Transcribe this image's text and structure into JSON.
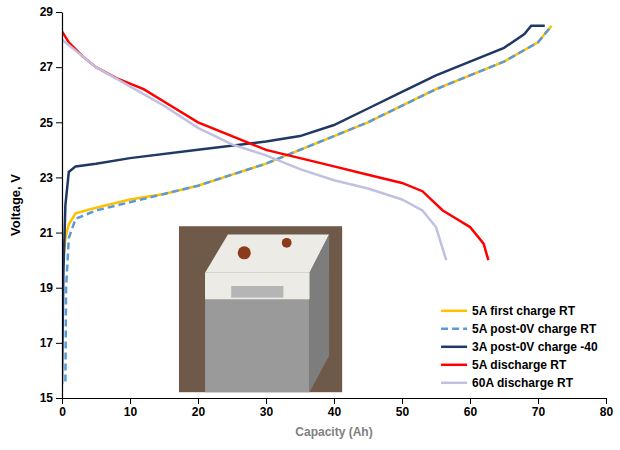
{
  "chart_data": {
    "type": "line",
    "x_label": "Capacity (Ah)",
    "y_label": "Voltage, V",
    "xlim": [
      0,
      80
    ],
    "xticks": [
      0,
      10,
      20,
      30,
      40,
      50,
      60,
      70,
      80
    ],
    "ylim": [
      15,
      29
    ],
    "yticks": [
      15,
      17,
      19,
      21,
      23,
      25,
      27,
      29
    ],
    "grid": false,
    "legend": "lower right",
    "series": [
      {
        "name": "5A first charge RT",
        "color": "#FFC000",
        "line_style": "solid",
        "x": [
          0,
          0.5,
          1,
          2,
          5,
          10,
          15,
          20,
          25,
          30,
          35,
          40,
          45,
          50,
          55,
          60,
          65,
          70,
          72
        ],
        "values": [
          19.5,
          20.8,
          21.3,
          21.7,
          21.9,
          22.2,
          22.4,
          22.7,
          23.1,
          23.5,
          24.0,
          24.5,
          25.0,
          25.6,
          26.2,
          26.7,
          27.2,
          27.9,
          28.5
        ]
      },
      {
        "name": "5A post-0V charge RT",
        "color": "#5B9BD5",
        "line_style": "dashed",
        "x": [
          0.5,
          0.6,
          1,
          2,
          5,
          10,
          15,
          20,
          25,
          30,
          35,
          40,
          45,
          50,
          55,
          60,
          65,
          70,
          72
        ],
        "values": [
          15.6,
          19.0,
          20.8,
          21.5,
          21.8,
          22.1,
          22.4,
          22.7,
          23.1,
          23.5,
          24.0,
          24.5,
          25.0,
          25.6,
          26.2,
          26.7,
          27.2,
          27.9,
          28.5
        ]
      },
      {
        "name": "3A post-0V charge -40",
        "color": "#1F3864",
        "line_style": "solid",
        "x": [
          0,
          0.2,
          0.5,
          1,
          2,
          5,
          10,
          20,
          30,
          35,
          40,
          45,
          50,
          55,
          60,
          65,
          68,
          69,
          71
        ],
        "values": [
          15.5,
          19.5,
          22.0,
          23.2,
          23.4,
          23.5,
          23.7,
          24.0,
          24.3,
          24.5,
          24.9,
          25.5,
          26.1,
          26.7,
          27.2,
          27.7,
          28.2,
          28.5,
          28.5
        ]
      },
      {
        "name": "5A discharge RT",
        "color": "#FF0000",
        "line_style": "solid",
        "x": [
          0,
          1,
          3,
          5,
          8,
          12,
          16,
          20,
          25,
          30,
          35,
          40,
          45,
          50,
          53,
          56,
          58,
          60,
          62,
          62.7
        ],
        "values": [
          28.3,
          27.9,
          27.4,
          27.0,
          26.6,
          26.2,
          25.6,
          25.0,
          24.5,
          24.0,
          23.7,
          23.4,
          23.1,
          22.8,
          22.5,
          21.8,
          21.5,
          21.2,
          20.6,
          20.0
        ]
      },
      {
        "name": "60A discharge RT",
        "color": "#C0C0E0",
        "line_style": "solid",
        "x": [
          0,
          2,
          5,
          10,
          15,
          20,
          25,
          30,
          35,
          40,
          45,
          50,
          53,
          55,
          56.5
        ],
        "values": [
          28.0,
          27.6,
          27.0,
          26.3,
          25.6,
          24.8,
          24.2,
          23.8,
          23.3,
          22.9,
          22.6,
          22.2,
          21.8,
          21.2,
          20.0
        ]
      }
    ]
  }
}
